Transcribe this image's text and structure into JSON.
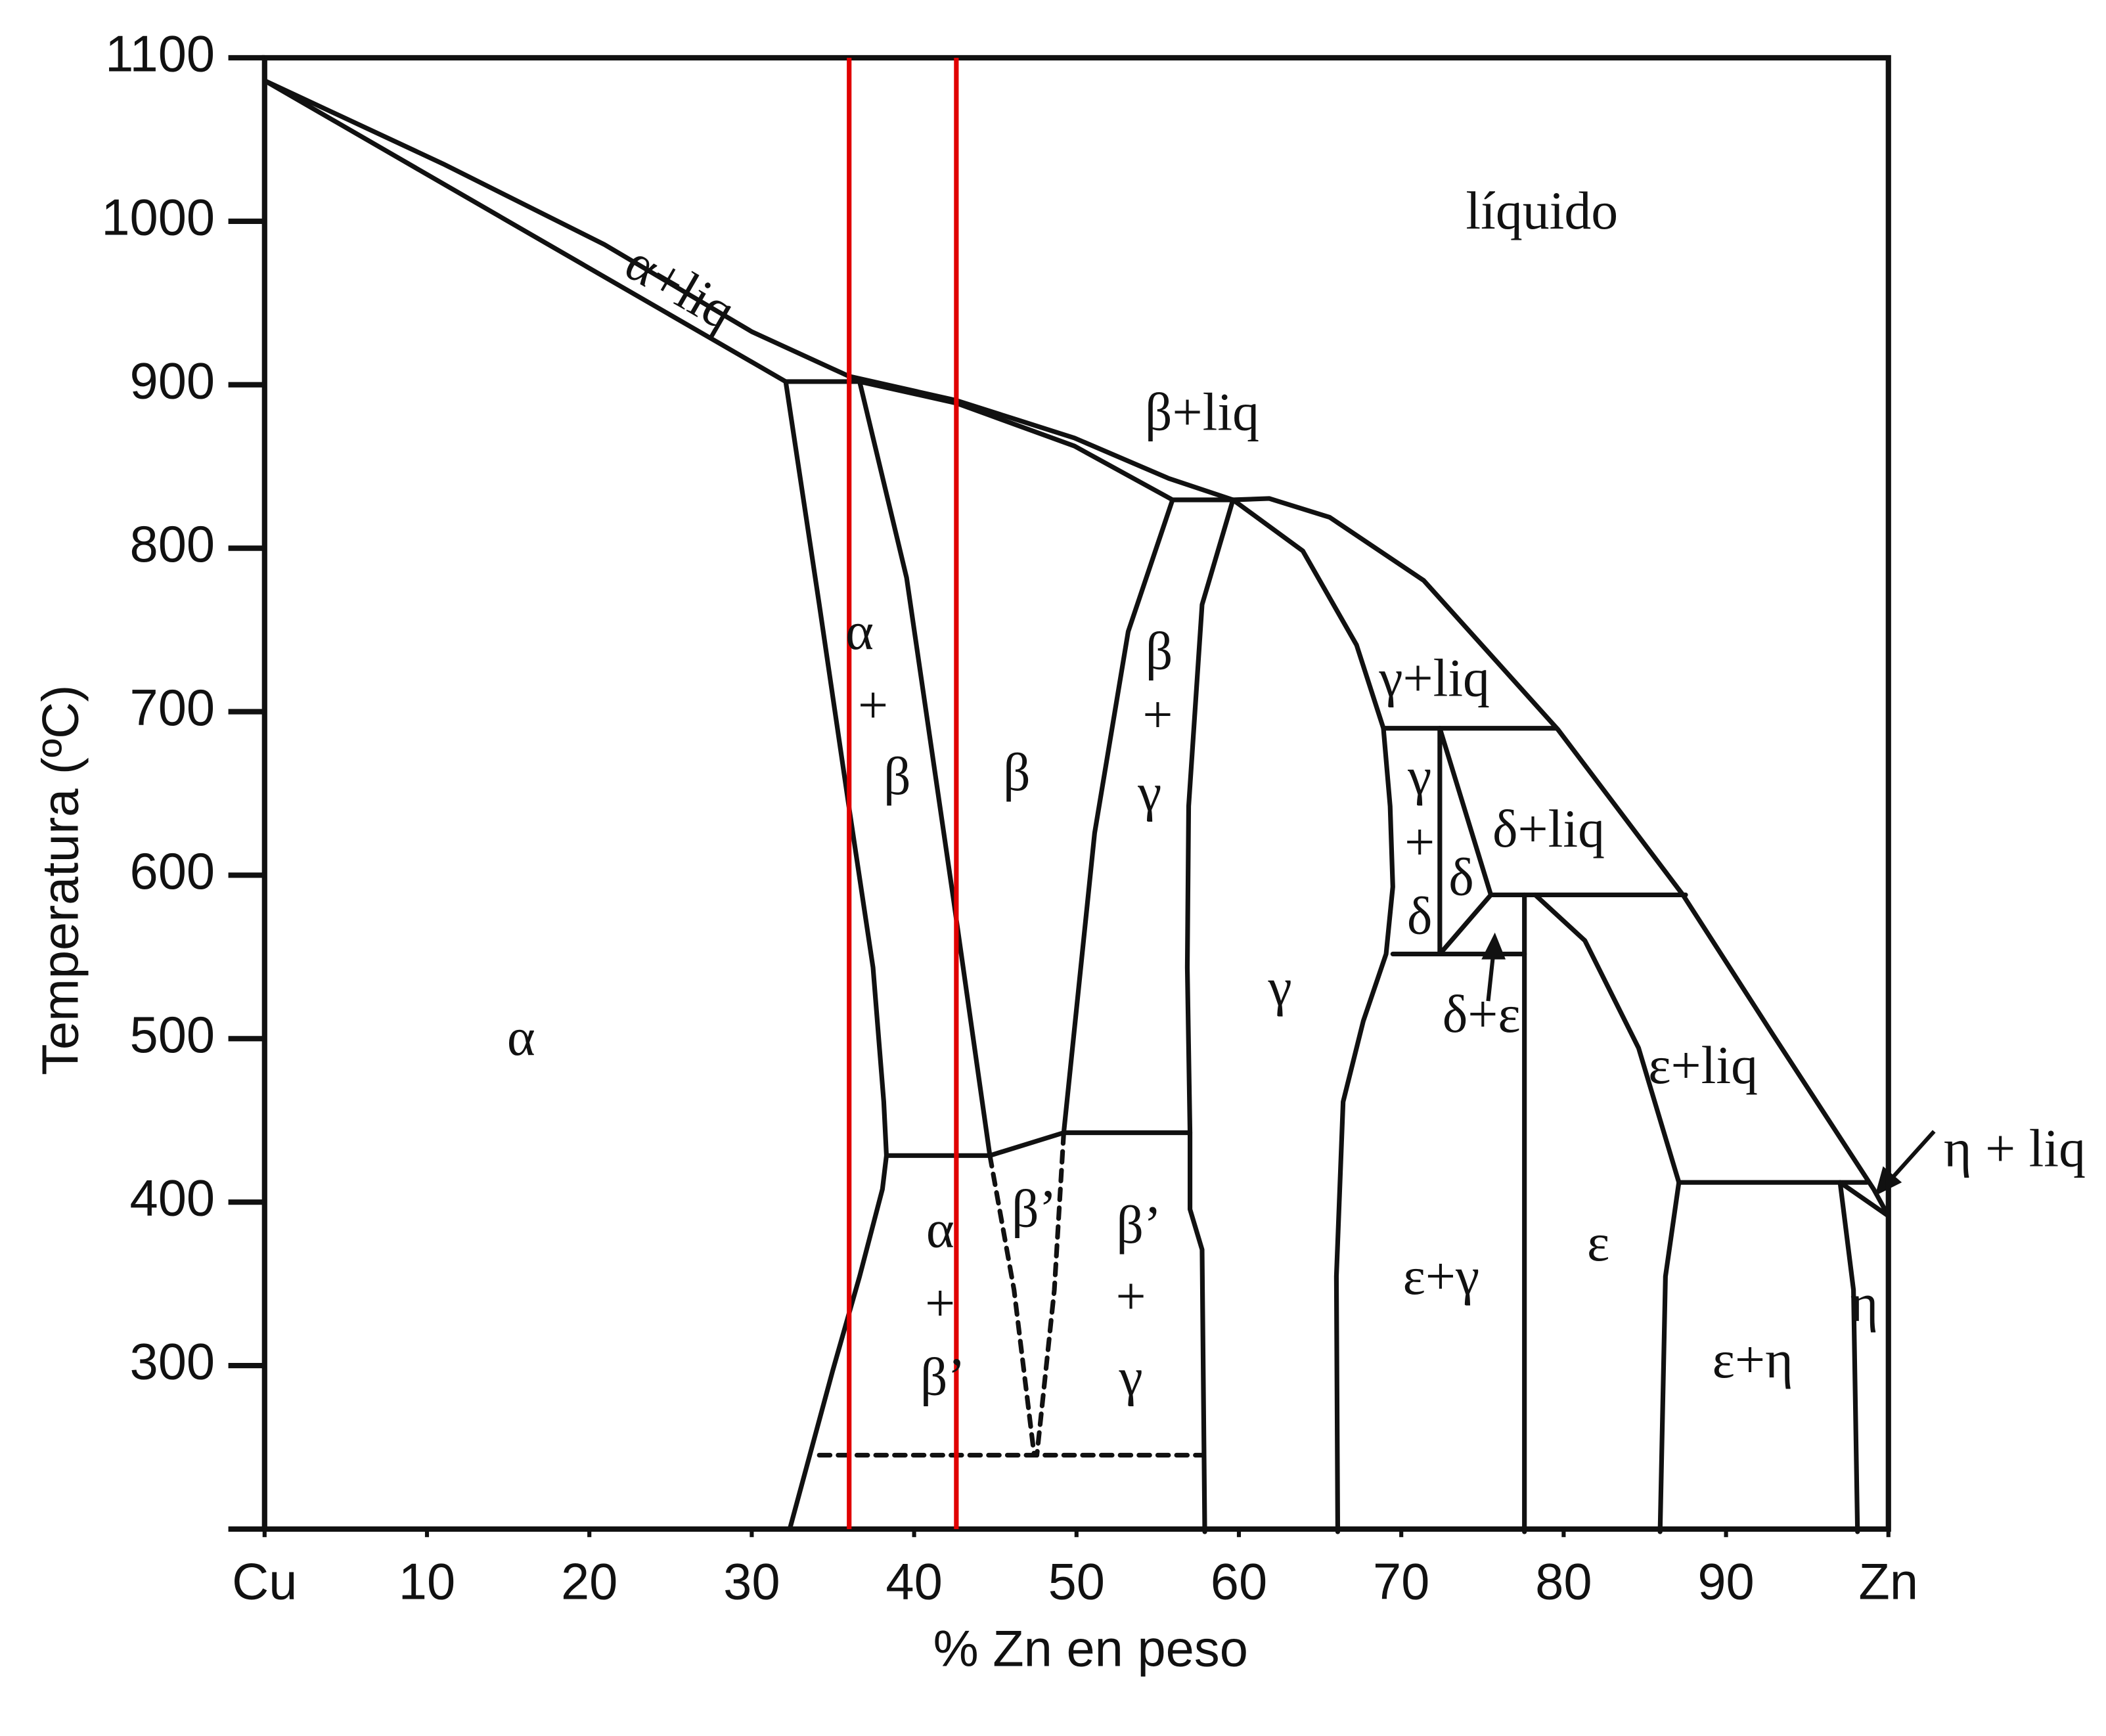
{
  "chart_data": {
    "type": "phase",
    "xlabel": "% Zn en peso",
    "ylabel": "Temperatura (ºC)",
    "xlim": [
      0,
      100
    ],
    "ylim": [
      200,
      1100
    ],
    "xticks": [
      {
        "value": 0,
        "label": "Cu"
      },
      10,
      20,
      30,
      40,
      50,
      60,
      70,
      80,
      90,
      {
        "value": 100,
        "label": "Zn"
      }
    ],
    "yticks": [
      300,
      400,
      500,
      600,
      700,
      800,
      900,
      1000,
      1100
    ],
    "markers": {
      "color": "#e00000",
      "x": [
        36,
        42.6
      ]
    },
    "regions": [
      {
        "lines": [
          "α"
        ]
      },
      {
        "lines": [
          "α+liq"
        ]
      },
      {
        "lines": [
          "líquido"
        ]
      },
      {
        "lines": [
          "β+liq"
        ]
      },
      {
        "lines": [
          "α",
          "+",
          "β"
        ]
      },
      {
        "lines": [
          "β"
        ]
      },
      {
        "lines": [
          "β",
          "+",
          "γ"
        ]
      },
      {
        "lines": [
          "γ"
        ]
      },
      {
        "lines": [
          "γ+liq"
        ]
      },
      {
        "lines": [
          "γ",
          "+",
          "δ"
        ]
      },
      {
        "lines": [
          "δ"
        ]
      },
      {
        "lines": [
          "δ+liq"
        ]
      },
      {
        "lines": [
          "δ+ε"
        ]
      },
      {
        "lines": [
          "ε+liq"
        ]
      },
      {
        "lines": [
          "η + liq"
        ]
      },
      {
        "lines": [
          "α",
          "+",
          "β’"
        ]
      },
      {
        "lines": [
          "β’"
        ]
      },
      {
        "lines": [
          "β’",
          "+",
          "γ"
        ]
      },
      {
        "lines": [
          "ε+γ"
        ]
      },
      {
        "lines": [
          "ε"
        ]
      },
      {
        "lines": [
          "ε+η"
        ]
      },
      {
        "lines": [
          "η"
        ]
      }
    ]
  }
}
